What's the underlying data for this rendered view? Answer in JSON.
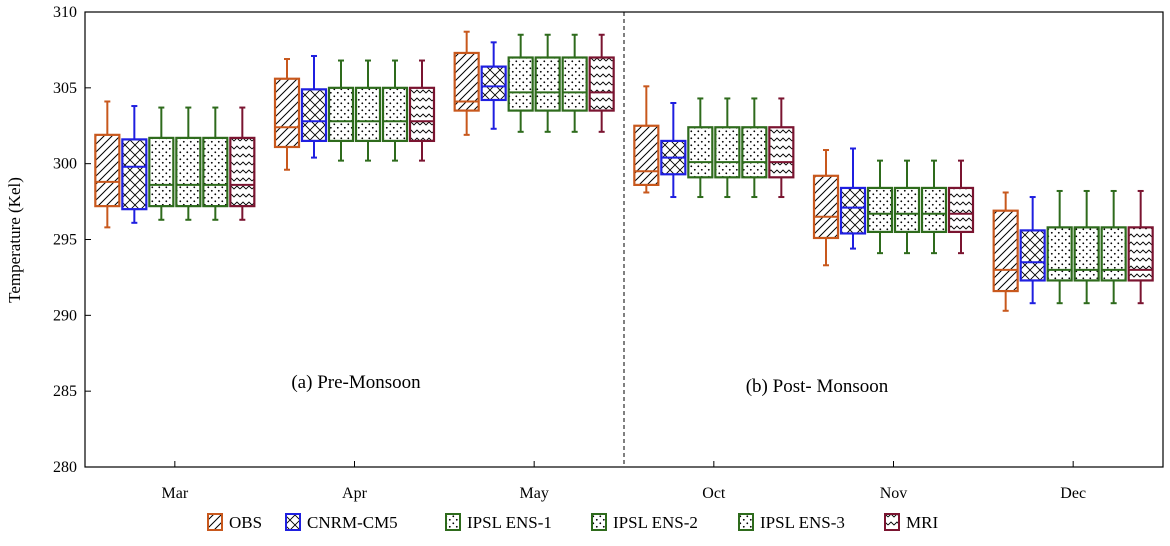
{
  "chart_data": {
    "type": "boxplot",
    "ylabel": "Temperature (Kel)",
    "ylim": [
      280,
      310
    ],
    "yticks": [
      280,
      285,
      290,
      295,
      300,
      305,
      310
    ],
    "categories": [
      "Mar",
      "Apr",
      "May",
      "Oct",
      "Nov",
      "Dec"
    ],
    "divider_after_category": "May",
    "annotations": [
      "(a) Pre-Monsoon",
      "(b) Post- Monsoon"
    ],
    "legend_position": "bottom",
    "series": [
      {
        "name": "OBS",
        "color": "#c8581d",
        "pattern": "diagonal",
        "boxes": [
          {
            "min": 295.8,
            "q1": 297.2,
            "median": 298.8,
            "q3": 301.9,
            "max": 304.1
          },
          {
            "min": 299.6,
            "q1": 301.1,
            "median": 302.4,
            "q3": 305.6,
            "max": 306.9
          },
          {
            "min": 301.9,
            "q1": 303.5,
            "median": 304.1,
            "q3": 307.3,
            "max": 308.7
          },
          {
            "min": 298.1,
            "q1": 298.6,
            "median": 299.5,
            "q3": 302.5,
            "max": 305.1
          },
          {
            "min": 293.3,
            "q1": 295.1,
            "median": 296.5,
            "q3": 299.2,
            "max": 300.9
          },
          {
            "min": 290.3,
            "q1": 291.6,
            "median": 293.0,
            "q3": 296.9,
            "max": 298.1
          }
        ]
      },
      {
        "name": "CNRM-CM5",
        "color": "#1f1fe0",
        "pattern": "crosshatch",
        "boxes": [
          {
            "min": 296.1,
            "q1": 297.0,
            "median": 299.8,
            "q3": 301.6,
            "max": 303.8
          },
          {
            "min": 300.4,
            "q1": 301.5,
            "median": 302.8,
            "q3": 304.9,
            "max": 307.1
          },
          {
            "min": 302.3,
            "q1": 304.2,
            "median": 305.1,
            "q3": 306.4,
            "max": 308.0
          },
          {
            "min": 297.8,
            "q1": 299.3,
            "median": 300.4,
            "q3": 301.5,
            "max": 304.0
          },
          {
            "min": 294.4,
            "q1": 295.4,
            "median": 297.1,
            "q3": 298.4,
            "max": 301.0
          },
          {
            "min": 290.8,
            "q1": 292.3,
            "median": 293.5,
            "q3": 295.6,
            "max": 297.8
          }
        ]
      },
      {
        "name": "IPSL ENS-1",
        "color": "#2e6b1c",
        "pattern": "dots",
        "boxes": [
          {
            "min": 296.3,
            "q1": 297.2,
            "median": 298.6,
            "q3": 301.7,
            "max": 303.7
          },
          {
            "min": 300.2,
            "q1": 301.5,
            "median": 302.8,
            "q3": 305.0,
            "max": 306.8
          },
          {
            "min": 302.1,
            "q1": 303.5,
            "median": 304.7,
            "q3": 307.0,
            "max": 308.5
          },
          {
            "min": 297.8,
            "q1": 299.1,
            "median": 300.1,
            "q3": 302.4,
            "max": 304.3
          },
          {
            "min": 294.1,
            "q1": 295.5,
            "median": 296.7,
            "q3": 298.4,
            "max": 300.2
          },
          {
            "min": 290.8,
            "q1": 292.3,
            "median": 293.0,
            "q3": 295.8,
            "max": 298.2
          }
        ]
      },
      {
        "name": "IPSL ENS-2",
        "color": "#2e6b1c",
        "pattern": "dots",
        "boxes": [
          {
            "min": 296.3,
            "q1": 297.2,
            "median": 298.6,
            "q3": 301.7,
            "max": 303.7
          },
          {
            "min": 300.2,
            "q1": 301.5,
            "median": 302.8,
            "q3": 305.0,
            "max": 306.8
          },
          {
            "min": 302.1,
            "q1": 303.5,
            "median": 304.7,
            "q3": 307.0,
            "max": 308.5
          },
          {
            "min": 297.8,
            "q1": 299.1,
            "median": 300.1,
            "q3": 302.4,
            "max": 304.3
          },
          {
            "min": 294.1,
            "q1": 295.5,
            "median": 296.7,
            "q3": 298.4,
            "max": 300.2
          },
          {
            "min": 290.8,
            "q1": 292.3,
            "median": 293.0,
            "q3": 295.8,
            "max": 298.2
          }
        ]
      },
      {
        "name": "IPSL ENS-3",
        "color": "#2e6b1c",
        "pattern": "dots",
        "boxes": [
          {
            "min": 296.3,
            "q1": 297.2,
            "median": 298.6,
            "q3": 301.7,
            "max": 303.7
          },
          {
            "min": 300.2,
            "q1": 301.5,
            "median": 302.8,
            "q3": 305.0,
            "max": 306.8
          },
          {
            "min": 302.1,
            "q1": 303.5,
            "median": 304.7,
            "q3": 307.0,
            "max": 308.5
          },
          {
            "min": 297.8,
            "q1": 299.1,
            "median": 300.1,
            "q3": 302.4,
            "max": 304.3
          },
          {
            "min": 294.1,
            "q1": 295.5,
            "median": 296.7,
            "q3": 298.4,
            "max": 300.2
          },
          {
            "min": 290.8,
            "q1": 292.3,
            "median": 293.0,
            "q3": 295.8,
            "max": 298.2
          }
        ]
      },
      {
        "name": "MRI",
        "color": "#7a1430",
        "pattern": "wave",
        "boxes": [
          {
            "min": 296.3,
            "q1": 297.2,
            "median": 298.6,
            "q3": 301.7,
            "max": 303.7
          },
          {
            "min": 300.2,
            "q1": 301.5,
            "median": 302.8,
            "q3": 305.0,
            "max": 306.8
          },
          {
            "min": 302.1,
            "q1": 303.5,
            "median": 304.7,
            "q3": 307.0,
            "max": 308.5
          },
          {
            "min": 297.8,
            "q1": 299.1,
            "median": 300.1,
            "q3": 302.4,
            "max": 304.3
          },
          {
            "min": 294.1,
            "q1": 295.5,
            "median": 296.7,
            "q3": 298.4,
            "max": 300.2
          },
          {
            "min": 290.8,
            "q1": 292.3,
            "median": 293.0,
            "q3": 295.8,
            "max": 298.2
          }
        ]
      }
    ]
  }
}
